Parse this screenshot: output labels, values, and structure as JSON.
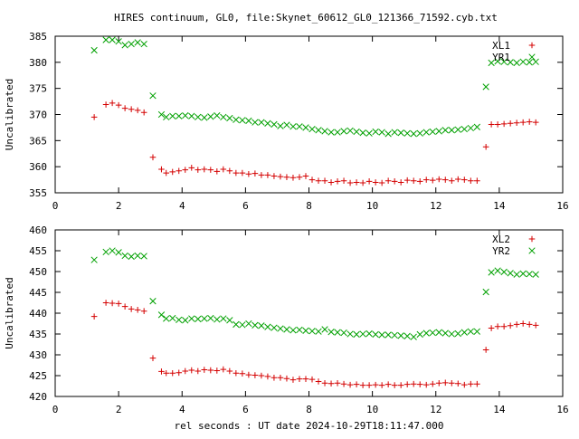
{
  "title": "HIRES continuum, GL0, file:Skynet_60612_GL0_121366_71592.cyb.txt",
  "chart_data": [
    {
      "type": "scatter",
      "ylabel": "Uncalibrated",
      "xlabel": "",
      "xlim": [
        0,
        16
      ],
      "ylim": [
        355,
        385
      ],
      "xticks": [
        0,
        2,
        4,
        6,
        8,
        10,
        12,
        14,
        16
      ],
      "yticks": [
        355,
        360,
        365,
        370,
        375,
        380,
        385
      ],
      "legend_position": "top-right",
      "series": [
        {
          "name": "XL1",
          "color": "#d40000",
          "marker": "plus",
          "x": [
            1.23,
            1.6,
            1.8,
            2.0,
            2.2,
            2.4,
            2.6,
            2.8,
            3.08,
            3.35,
            3.5,
            3.7,
            3.9,
            4.1,
            4.3,
            4.5,
            4.7,
            4.9,
            5.1,
            5.3,
            5.5,
            5.7,
            5.9,
            6.1,
            6.3,
            6.5,
            6.7,
            6.9,
            7.1,
            7.3,
            7.5,
            7.7,
            7.9,
            8.1,
            8.3,
            8.5,
            8.7,
            8.9,
            9.1,
            9.3,
            9.5,
            9.7,
            9.9,
            10.1,
            10.3,
            10.5,
            10.7,
            10.9,
            11.1,
            11.3,
            11.5,
            11.7,
            11.9,
            12.1,
            12.3,
            12.5,
            12.7,
            12.9,
            13.1,
            13.3,
            13.58,
            13.75,
            13.95,
            14.15,
            14.35,
            14.55,
            14.75,
            14.95,
            15.15
          ],
          "y": [
            369.5,
            371.9,
            372.2,
            371.8,
            371.2,
            371.0,
            370.8,
            370.4,
            361.8,
            359.5,
            358.8,
            359.0,
            359.2,
            359.4,
            359.8,
            359.4,
            359.5,
            359.4,
            359.1,
            359.5,
            359.2,
            358.8,
            358.8,
            358.6,
            358.7,
            358.4,
            358.4,
            358.2,
            358.1,
            358.0,
            357.9,
            358.0,
            358.2,
            357.5,
            357.3,
            357.3,
            357.0,
            357.2,
            357.3,
            356.9,
            357.0,
            356.9,
            357.2,
            357.0,
            356.9,
            357.3,
            357.2,
            357.0,
            357.4,
            357.3,
            357.2,
            357.5,
            357.4,
            357.6,
            357.5,
            357.3,
            357.6,
            357.5,
            357.3,
            357.3,
            363.8,
            368.1,
            368.1,
            368.2,
            368.3,
            368.4,
            368.5,
            368.6,
            368.5
          ]
        },
        {
          "name": "YR1",
          "color": "#00a000",
          "marker": "cross",
          "x": [
            1.23,
            1.6,
            1.8,
            2.0,
            2.2,
            2.4,
            2.6,
            2.8,
            3.08,
            3.35,
            3.5,
            3.7,
            3.9,
            4.1,
            4.3,
            4.5,
            4.7,
            4.9,
            5.1,
            5.3,
            5.5,
            5.7,
            5.9,
            6.1,
            6.3,
            6.5,
            6.7,
            6.9,
            7.1,
            7.3,
            7.5,
            7.7,
            7.9,
            8.1,
            8.3,
            8.5,
            8.7,
            8.9,
            9.1,
            9.3,
            9.5,
            9.7,
            9.9,
            10.1,
            10.3,
            10.5,
            10.7,
            10.9,
            11.1,
            11.3,
            11.5,
            11.7,
            11.9,
            12.1,
            12.3,
            12.5,
            12.7,
            12.9,
            13.1,
            13.3,
            13.58,
            13.75,
            13.95,
            14.15,
            14.35,
            14.55,
            14.75,
            14.95,
            15.15
          ],
          "y": [
            382.3,
            384.3,
            384.3,
            384.0,
            383.3,
            383.5,
            383.8,
            383.5,
            373.6,
            370.0,
            369.5,
            369.7,
            369.7,
            369.8,
            369.7,
            369.5,
            369.4,
            369.6,
            369.8,
            369.5,
            369.3,
            369.0,
            368.9,
            368.8,
            368.5,
            368.5,
            368.3,
            368.1,
            367.8,
            368.0,
            367.7,
            367.7,
            367.5,
            367.2,
            367.0,
            366.8,
            366.6,
            366.6,
            366.8,
            366.9,
            366.7,
            366.5,
            366.4,
            366.7,
            366.6,
            366.3,
            366.6,
            366.5,
            366.4,
            366.3,
            366.4,
            366.6,
            366.7,
            366.8,
            367.0,
            367.0,
            367.1,
            367.2,
            367.4,
            367.6,
            375.3,
            379.9,
            380.2,
            380.1,
            380.0,
            379.9,
            380.1,
            380.0,
            380.1
          ]
        }
      ]
    },
    {
      "type": "scatter",
      "ylabel": "Uncalibrated",
      "xlabel": "rel seconds : UT date 2024-10-29T18:11:47.000",
      "xlim": [
        0,
        16
      ],
      "ylim": [
        420,
        460
      ],
      "xticks": [
        0,
        2,
        4,
        6,
        8,
        10,
        12,
        14,
        16
      ],
      "yticks": [
        420,
        425,
        430,
        435,
        440,
        445,
        450,
        455,
        460
      ],
      "legend_position": "top-right",
      "series": [
        {
          "name": "XL2",
          "color": "#d40000",
          "marker": "plus",
          "x": [
            1.23,
            1.6,
            1.8,
            2.0,
            2.2,
            2.4,
            2.6,
            2.8,
            3.08,
            3.35,
            3.5,
            3.7,
            3.9,
            4.1,
            4.3,
            4.5,
            4.7,
            4.9,
            5.1,
            5.3,
            5.5,
            5.7,
            5.9,
            6.1,
            6.3,
            6.5,
            6.7,
            6.9,
            7.1,
            7.3,
            7.5,
            7.7,
            7.9,
            8.1,
            8.3,
            8.5,
            8.7,
            8.9,
            9.1,
            9.3,
            9.5,
            9.7,
            9.9,
            10.1,
            10.3,
            10.5,
            10.7,
            10.9,
            11.1,
            11.3,
            11.5,
            11.7,
            11.9,
            12.1,
            12.3,
            12.5,
            12.7,
            12.9,
            13.1,
            13.3,
            13.58,
            13.75,
            13.95,
            14.15,
            14.35,
            14.55,
            14.75,
            14.95,
            15.15
          ],
          "y": [
            439.2,
            442.5,
            442.4,
            442.3,
            441.6,
            441.0,
            440.8,
            440.5,
            429.2,
            426.0,
            425.6,
            425.6,
            425.7,
            426.1,
            426.3,
            426.1,
            426.4,
            426.3,
            426.2,
            426.5,
            426.1,
            425.6,
            425.5,
            425.2,
            425.1,
            425.0,
            424.8,
            424.5,
            424.5,
            424.3,
            424.0,
            424.2,
            424.2,
            424.1,
            423.6,
            423.2,
            423.1,
            423.2,
            423.0,
            422.8,
            422.9,
            422.7,
            422.7,
            422.8,
            422.7,
            422.9,
            422.7,
            422.7,
            422.9,
            423.0,
            422.9,
            422.8,
            423.0,
            423.2,
            423.3,
            423.2,
            423.1,
            422.8,
            423.0,
            423.0,
            431.2,
            436.4,
            436.8,
            436.8,
            437.0,
            437.3,
            437.5,
            437.3,
            437.1
          ]
        },
        {
          "name": "YR2",
          "color": "#00a000",
          "marker": "cross",
          "x": [
            1.23,
            1.6,
            1.8,
            2.0,
            2.2,
            2.4,
            2.6,
            2.8,
            3.08,
            3.35,
            3.5,
            3.7,
            3.9,
            4.1,
            4.3,
            4.5,
            4.7,
            4.9,
            5.1,
            5.3,
            5.5,
            5.7,
            5.9,
            6.1,
            6.3,
            6.5,
            6.7,
            6.9,
            7.1,
            7.3,
            7.5,
            7.7,
            7.9,
            8.1,
            8.3,
            8.5,
            8.7,
            8.9,
            9.1,
            9.3,
            9.5,
            9.7,
            9.9,
            10.1,
            10.3,
            10.5,
            10.7,
            10.9,
            11.1,
            11.3,
            11.5,
            11.7,
            11.9,
            12.1,
            12.3,
            12.5,
            12.7,
            12.9,
            13.1,
            13.3,
            13.58,
            13.75,
            13.95,
            14.15,
            14.35,
            14.55,
            14.75,
            14.95,
            15.15
          ],
          "y": [
            452.8,
            454.7,
            455.0,
            454.6,
            453.8,
            453.6,
            453.8,
            453.7,
            442.9,
            439.6,
            438.7,
            438.8,
            438.4,
            438.3,
            438.7,
            438.6,
            438.7,
            438.8,
            438.5,
            438.7,
            438.3,
            437.3,
            437.2,
            437.5,
            437.1,
            437.0,
            436.7,
            436.5,
            436.3,
            436.1,
            435.9,
            436.0,
            435.8,
            435.7,
            435.6,
            436.1,
            435.5,
            435.4,
            435.3,
            435.0,
            434.9,
            435.0,
            435.1,
            434.9,
            434.8,
            434.8,
            434.7,
            434.6,
            434.5,
            434.3,
            434.9,
            435.2,
            435.3,
            435.4,
            435.2,
            435.0,
            435.1,
            435.4,
            435.6,
            435.6,
            445.1,
            449.8,
            450.2,
            449.9,
            449.6,
            449.3,
            449.5,
            449.4,
            449.3
          ]
        }
      ]
    }
  ]
}
